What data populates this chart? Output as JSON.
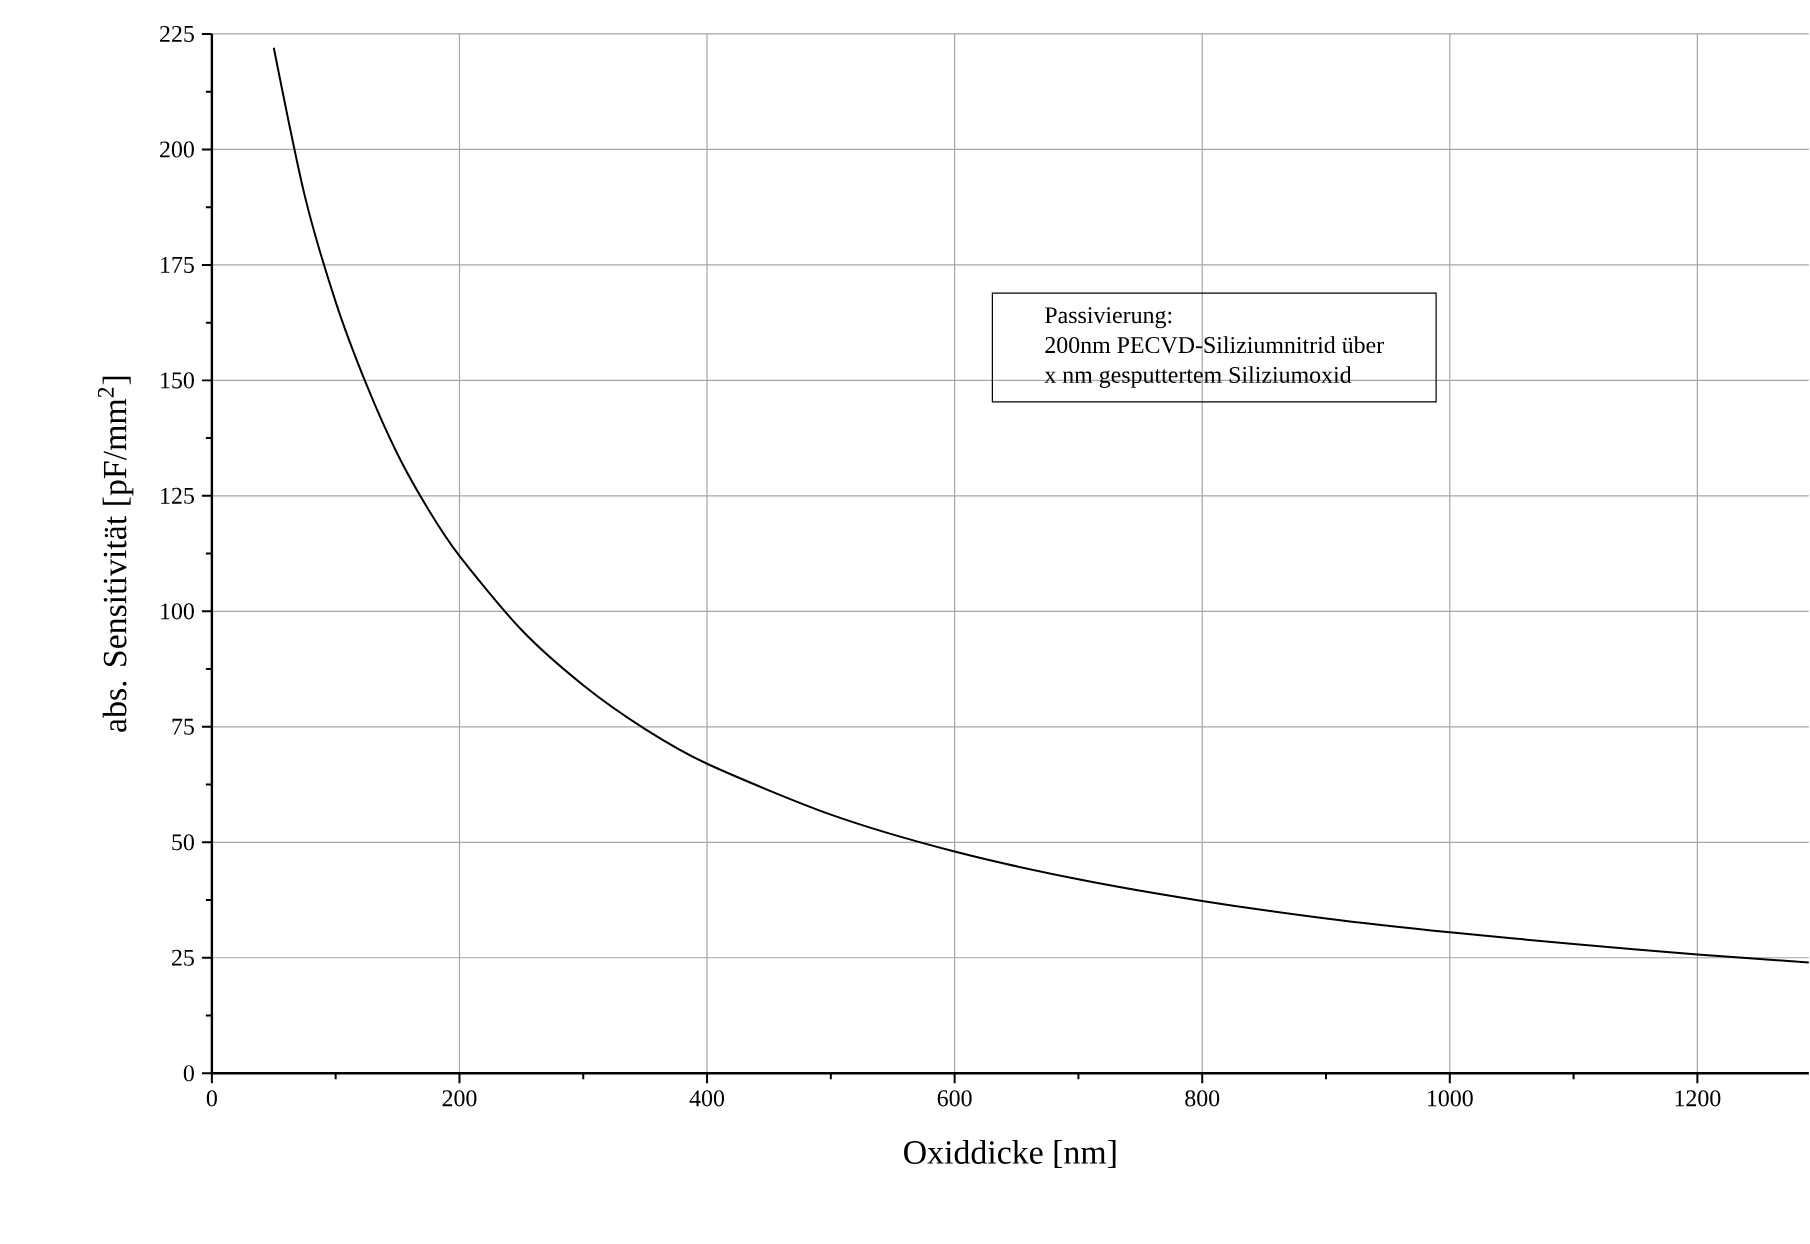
{
  "chart_data": {
    "type": "line",
    "xlabel": "Oxiddicke [nm]",
    "ylabel": "abs. Sensitivität [pF/mm$^{2}$]",
    "annotations": [
      "Passivierung:",
      "200nm PECVD-Siliziumnitrid über",
      "x nm gesputtertem Siliziumoxid"
    ],
    "x": [
      50,
      75,
      100,
      125,
      150,
      175,
      200,
      250,
      300,
      350,
      400,
      500,
      600,
      700,
      800,
      900,
      1000,
      1100,
      1200,
      1290
    ],
    "series": [
      {
        "color": "#000000",
        "values": [
          222,
          190,
          167,
          149,
          134,
          122,
          112,
          96,
          84,
          74.5,
          67,
          56,
          48,
          42,
          37.3,
          33.5,
          30.5,
          28,
          25.7,
          24
        ]
      }
    ],
    "xlim": [
      0,
      1290
    ],
    "ylim": [
      0,
      225
    ],
    "xticks": [
      0,
      200,
      400,
      600,
      800,
      1000,
      1200
    ],
    "yticks": [
      0,
      25,
      50,
      75,
      100,
      125,
      150,
      175,
      200,
      225
    ],
    "grid": true,
    "marker": "none",
    "line_style": "solid"
  }
}
